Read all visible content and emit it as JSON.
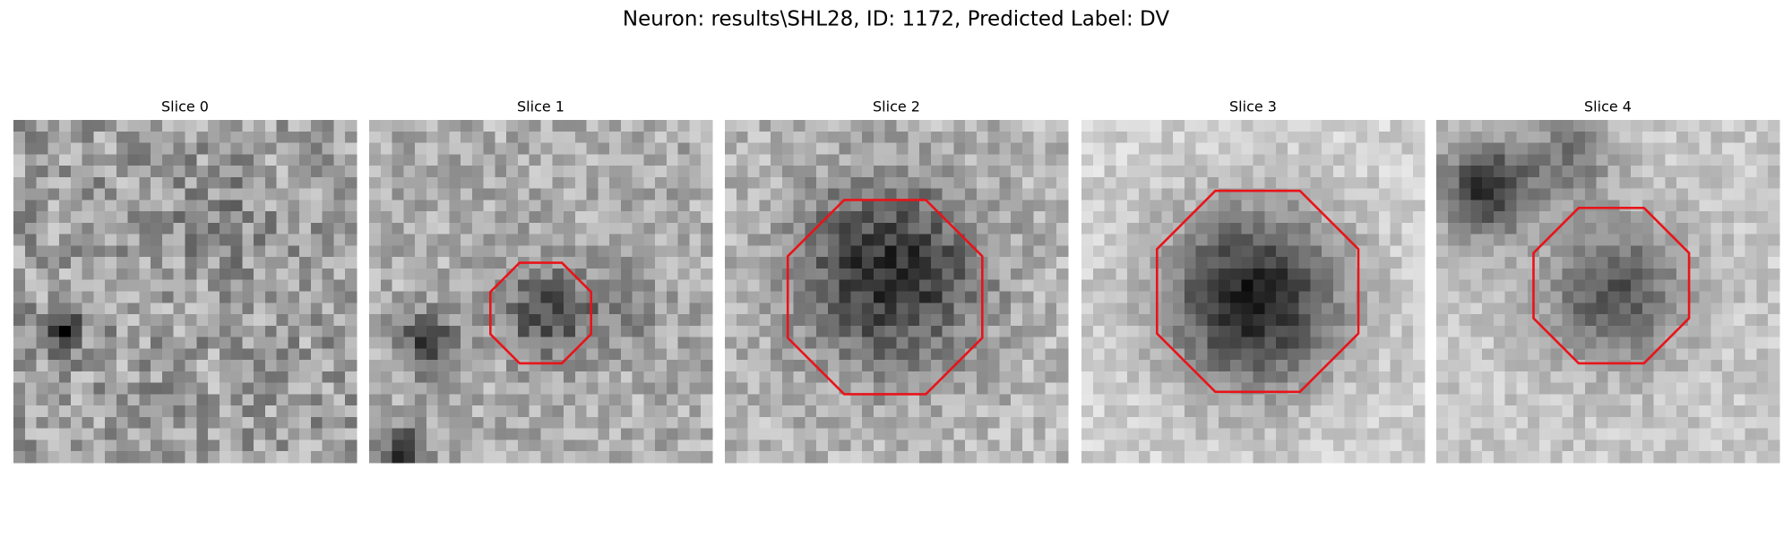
{
  "title": "Neuron: results\\SHL28, ID: 1172, Predicted Label: DV",
  "panels": [
    {
      "title": "Slice 0"
    },
    {
      "title": "Slice 1"
    },
    {
      "title": "Slice 2"
    },
    {
      "title": "Slice 3"
    },
    {
      "title": "Slice 4"
    }
  ]
}
